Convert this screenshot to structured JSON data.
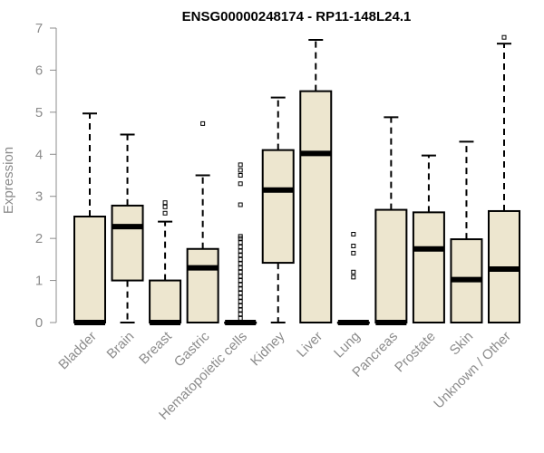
{
  "chart_data": {
    "type": "boxplot",
    "title": "ENSG00000248174 - RP11-148L24.1",
    "ylabel": "Expression",
    "xlabel": "",
    "ylim": [
      0,
      7
    ],
    "yticks": [
      0,
      1,
      2,
      3,
      4,
      5,
      6,
      7
    ],
    "box_fill": "#ede6cf",
    "categories": [
      "Bladder",
      "Brain",
      "Breast",
      "Gastric",
      "Hematopoietic cells",
      "Kidney",
      "Liver",
      "Lung",
      "Pancreas",
      "Prostate",
      "Skin",
      "Unknown / Other"
    ],
    "boxes": [
      {
        "name": "Bladder",
        "whisker_low": 0,
        "q1": 0,
        "median": 0,
        "q3": 2.52,
        "whisker_high": 4.97,
        "outliers": []
      },
      {
        "name": "Brain",
        "whisker_low": 0,
        "q1": 1.0,
        "median": 2.28,
        "q3": 2.78,
        "whisker_high": 4.47,
        "outliers": []
      },
      {
        "name": "Breast",
        "whisker_low": 0,
        "q1": 0,
        "median": 0,
        "q3": 1.0,
        "whisker_high": 2.4,
        "outliers": [
          2.6,
          2.75,
          2.85
        ]
      },
      {
        "name": "Gastric",
        "whisker_low": 0,
        "q1": 0,
        "median": 1.3,
        "q3": 1.75,
        "whisker_high": 3.5,
        "outliers": [
          4.73
        ]
      },
      {
        "name": "Hematopoietic cells",
        "whisker_low": 0,
        "q1": 0,
        "median": 0,
        "q3": 0,
        "whisker_high": 0,
        "outliers": [
          0.1,
          0.2,
          0.3,
          0.4,
          0.5,
          0.6,
          0.7,
          0.8,
          0.9,
          1.0,
          1.1,
          1.2,
          1.3,
          1.4,
          1.5,
          1.6,
          1.7,
          1.8,
          1.9,
          2.0,
          2.05,
          2.8,
          3.3,
          3.5,
          3.62,
          3.75
        ]
      },
      {
        "name": "Kidney",
        "whisker_low": 0,
        "q1": 1.42,
        "median": 3.15,
        "q3": 4.1,
        "whisker_high": 5.35,
        "outliers": []
      },
      {
        "name": "Liver",
        "whisker_low": 0,
        "q1": 0,
        "median": 4.02,
        "q3": 5.5,
        "whisker_high": 6.72,
        "outliers": []
      },
      {
        "name": "Lung",
        "whisker_low": 0,
        "q1": 0,
        "median": 0,
        "q3": 0,
        "whisker_high": 0,
        "outliers": [
          1.08,
          1.2,
          1.65,
          1.82,
          2.1
        ]
      },
      {
        "name": "Pancreas",
        "whisker_low": 0,
        "q1": 0,
        "median": 0,
        "q3": 2.68,
        "whisker_high": 4.88,
        "outliers": []
      },
      {
        "name": "Prostate",
        "whisker_low": 0,
        "q1": 0,
        "median": 1.75,
        "q3": 2.62,
        "whisker_high": 3.97,
        "outliers": []
      },
      {
        "name": "Skin",
        "whisker_low": 0,
        "q1": 0,
        "median": 1.02,
        "q3": 1.98,
        "whisker_high": 4.3,
        "outliers": []
      },
      {
        "name": "Unknown / Other",
        "whisker_low": 0,
        "q1": 0,
        "median": 1.27,
        "q3": 2.65,
        "whisker_high": 6.63,
        "outliers": [
          6.78
        ]
      }
    ]
  }
}
